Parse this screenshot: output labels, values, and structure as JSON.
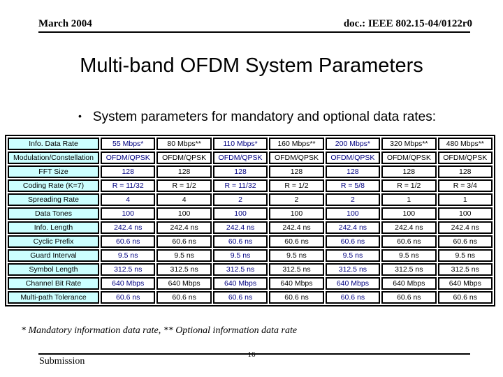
{
  "header": {
    "date": "March 2004",
    "doc": "doc.: IEEE 802.15-04/0122r0"
  },
  "title": "Multi-band OFDM System Parameters",
  "bullet": {
    "glyph": "•",
    "text": "System parameters for mandatory and optional data rates:"
  },
  "table": {
    "row_label_bg": "#CCFFFF",
    "mandatory_text_color": "#000080",
    "optional_text_color": "#000000",
    "column_colors": [
      "#000080",
      "#000000",
      "#000080",
      "#000000",
      "#000080",
      "#000000",
      "#000000"
    ],
    "rows": [
      {
        "label": "Info. Data Rate",
        "values": [
          "55 Mbps*",
          "80 Mbps**",
          "110 Mbps*",
          "160 Mbps**",
          "200 Mbps*",
          "320 Mbps**",
          "480 Mbps**"
        ]
      },
      {
        "label": "Modulation/Constellation",
        "values": [
          "OFDM/QPSK",
          "OFDM/QPSK",
          "OFDM/QPSK",
          "OFDM/QPSK",
          "OFDM/QPSK",
          "OFDM/QPSK",
          "OFDM/QPSK"
        ]
      },
      {
        "label": "FFT Size",
        "values": [
          "128",
          "128",
          "128",
          "128",
          "128",
          "128",
          "128"
        ]
      },
      {
        "label": "Coding Rate (K=7)",
        "values": [
          "R = 11/32",
          "R = 1/2",
          "R = 11/32",
          "R = 1/2",
          "R = 5/8",
          "R = 1/2",
          "R = 3/4"
        ]
      },
      {
        "label": "Spreading Rate",
        "values": [
          "4",
          "4",
          "2",
          "2",
          "2",
          "1",
          "1"
        ]
      },
      {
        "label": "Data Tones",
        "values": [
          "100",
          "100",
          "100",
          "100",
          "100",
          "100",
          "100"
        ]
      },
      {
        "label": "Info. Length",
        "values": [
          "242.4 ns",
          "242.4 ns",
          "242.4 ns",
          "242.4 ns",
          "242.4 ns",
          "242.4 ns",
          "242.4 ns"
        ]
      },
      {
        "label": "Cyclic Prefix",
        "values": [
          "60.6 ns",
          "60.6 ns",
          "60.6 ns",
          "60.6 ns",
          "60.6 ns",
          "60.6 ns",
          "60.6 ns"
        ]
      },
      {
        "label": "Guard Interval",
        "values": [
          "9.5 ns",
          "9.5 ns",
          "9.5 ns",
          "9.5 ns",
          "9.5 ns",
          "9.5 ns",
          "9.5 ns"
        ]
      },
      {
        "label": "Symbol Length",
        "values": [
          "312.5 ns",
          "312.5 ns",
          "312.5 ns",
          "312.5 ns",
          "312.5 ns",
          "312.5 ns",
          "312.5 ns"
        ]
      },
      {
        "label": "Channel Bit Rate",
        "values": [
          "640 Mbps",
          "640 Mbps",
          "640 Mbps",
          "640 Mbps",
          "640 Mbps",
          "640 Mbps",
          "640 Mbps"
        ]
      },
      {
        "label": "Multi-path Tolerance",
        "values": [
          "60.6 ns",
          "60.6 ns",
          "60.6 ns",
          "60.6 ns",
          "60.6 ns",
          "60.6 ns",
          "60.6 ns"
        ]
      }
    ]
  },
  "footnote": "* Mandatory information data rate, ** Optional information data rate",
  "footer": {
    "submission": "Submission",
    "page": "16"
  }
}
